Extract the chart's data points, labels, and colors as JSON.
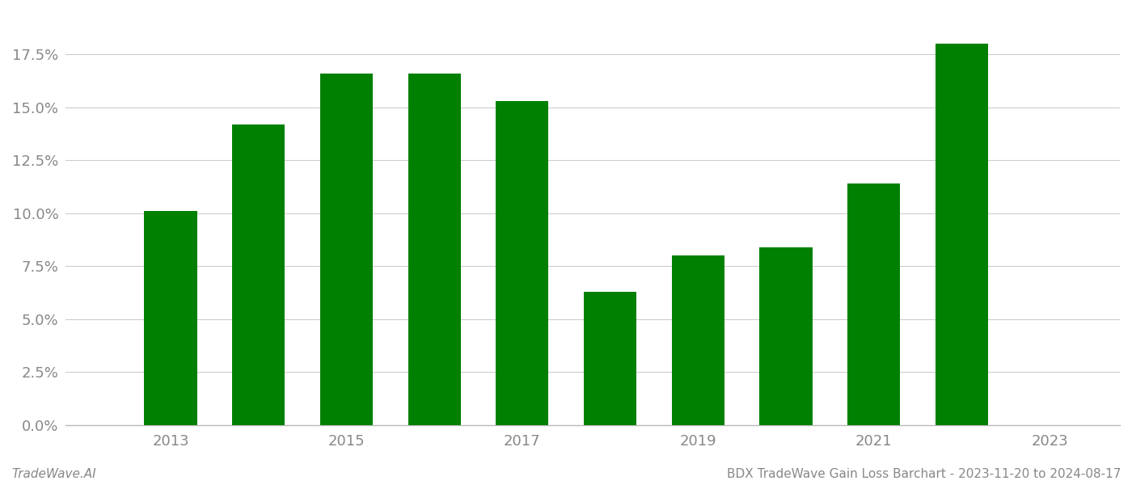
{
  "years": [
    2013,
    2014,
    2015,
    2016,
    2017,
    2018,
    2019,
    2020,
    2021,
    2022
  ],
  "values": [
    0.101,
    0.142,
    0.166,
    0.166,
    0.153,
    0.063,
    0.08,
    0.084,
    0.114,
    0.18
  ],
  "bar_color": "#008000",
  "background_color": "#ffffff",
  "grid_color": "#cccccc",
  "ylim": [
    0,
    0.195
  ],
  "yticks": [
    0.0,
    0.025,
    0.05,
    0.075,
    0.1,
    0.125,
    0.15,
    0.175
  ],
  "xtick_labels": [
    "2013",
    "2015",
    "2017",
    "2019",
    "2021",
    "2023"
  ],
  "xtick_positions": [
    2013,
    2015,
    2017,
    2019,
    2021,
    2023
  ],
  "footer_left": "TradeWave.AI",
  "footer_right": "BDX TradeWave Gain Loss Barchart - 2023-11-20 to 2024-08-17",
  "axis_label_color": "#888888",
  "footer_color": "#888888",
  "spine_color": "#bbbbbb",
  "bar_width": 0.6,
  "xlim_left": 2011.8,
  "xlim_right": 2023.8
}
